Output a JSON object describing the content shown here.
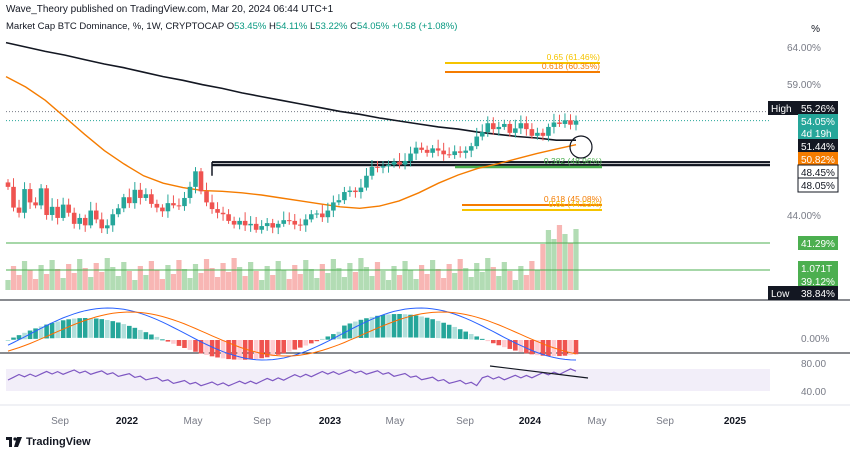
{
  "header": {
    "text": "Wave_Theory published on TradingView.com, Mar 20, 2024 06:44 UTC+1"
  },
  "legend": {
    "symbol": "Market Cap BTC Dominance, %, 1W, CRYPTOCAP",
    "o_label": "O",
    "o_value": "53.45%",
    "h_label": "H",
    "h_value": "54.11%",
    "l_label": "L",
    "l_value": "53.22%",
    "c_label": "C",
    "c_value": "54.05%",
    "change": "+0.58 (+1.08%)"
  },
  "percent_label": "%",
  "brand": {
    "name": "TradingView"
  },
  "colors": {
    "up": "#26a69a",
    "down": "#ef5350",
    "ma200": "#131722",
    "ma50": "#f57c00",
    "fib": "#f5c400",
    "fib_orange": "#f57c00",
    "support_green": "#4caf50",
    "macd": "#2962ff",
    "signal": "#ff6d00",
    "rsi": "#7e57c2"
  },
  "chart_data": {
    "type": "candlestick",
    "title": "Market Cap BTC Dominance, %, 1W, CRYPTOCAP",
    "x_ticks": [
      "Sep",
      "2022",
      "May",
      "Sep",
      "2023",
      "May",
      "Sep",
      "2024",
      "May",
      "Sep",
      "2025"
    ],
    "y_ticks": [
      "64.00%",
      "59.00%",
      "44.00%"
    ],
    "price_tags": [
      {
        "label": "High",
        "value": "55.26%",
        "kind": "high"
      },
      {
        "value": "54.05%",
        "sub": "4d 19h",
        "kind": "last"
      },
      {
        "value": "51.44%",
        "kind": "ma200"
      },
      {
        "value": "50.82%",
        "kind": "ma50"
      },
      {
        "value": "48.45%",
        "kind": "level"
      },
      {
        "value": "48.05%",
        "kind": "level"
      },
      {
        "value": "41.29%",
        "kind": "green"
      },
      {
        "value": "1.071T",
        "kind": "volume"
      },
      {
        "value": "39.12%",
        "kind": "green"
      },
      {
        "label": "Low",
        "value": "38.84%",
        "kind": "low"
      }
    ],
    "fib_levels": [
      {
        "label": "0.65 (61.46%)",
        "value": 61.46
      },
      {
        "label": "0.618 (60.35%)",
        "value": 60.35
      },
      {
        "label": "0.382 (48.96%)",
        "value": 48.96
      },
      {
        "label": "0.618 (45.08%)",
        "value": 45.08
      },
      {
        "label": "0.65 (44.53%)",
        "value": 44.53
      }
    ],
    "horizontal_levels": [
      55.26,
      48.45,
      48.05,
      41.29,
      39.12
    ],
    "close_series": [
      45.1,
      42.3,
      41.6,
      44.8,
      43.0,
      42.6,
      44.9,
      41.3,
      42.4,
      40.9,
      42.7,
      41.6,
      40.1,
      40.9,
      39.9,
      41.9,
      40.7,
      39.5,
      39.9,
      41.4,
      42.2,
      43.7,
      42.9,
      44.7,
      43.6,
      44.1,
      42.8,
      42.3,
      41.8,
      42.9,
      42.6,
      42.5,
      43.6,
      45.1,
      47.2,
      44.5,
      43.0,
      42.1,
      41.6,
      41.4,
      40.5,
      40.0,
      40.5,
      39.9,
      40.1,
      39.3,
      39.8,
      40.2,
      39.6,
      40.1,
      40.6,
      40.5,
      40.0,
      39.9,
      40.7,
      41.4,
      41.5,
      41.0,
      41.9,
      43.0,
      43.3,
      44.4,
      44.6,
      44.4,
      45.0,
      46.6,
      47.8,
      47.7,
      47.9,
      48.1,
      48.5,
      48.1,
      48.6,
      49.6,
      50.4,
      50.1,
      49.7,
      50.3,
      50.0,
      49.5,
      49.4,
      49.9,
      49.7,
      50.0,
      50.6,
      51.9,
      52.5,
      53.7,
      52.9,
      53.2,
      53.6,
      52.4,
      53.0,
      53.7,
      52.9,
      52.0,
      52.4,
      52.0,
      53.2,
      53.8,
      53.6,
      54.1,
      53.5,
      54.05
    ],
    "ma200": [
      64.6,
      64.0,
      63.4,
      62.9,
      62.3,
      61.7,
      61.2,
      60.6,
      60.0,
      59.5,
      58.9,
      58.4,
      57.8,
      57.3,
      56.8,
      56.3,
      55.8,
      55.3,
      54.9,
      54.4,
      54.0,
      53.6,
      53.2,
      52.9,
      52.5,
      52.2,
      51.9,
      51.7,
      51.4,
      51.4
    ],
    "ma50": [
      60.0,
      58.6,
      56.8,
      54.5,
      52.2,
      50.0,
      48.2,
      46.6,
      45.6,
      45.0,
      44.6,
      44.5,
      44.3,
      44.0,
      43.6,
      43.2,
      42.8,
      42.4,
      42.2,
      42.5,
      43.2,
      44.3,
      45.6,
      46.7,
      47.6,
      48.2,
      48.9,
      49.6,
      50.2,
      50.8
    ],
    "rsi_levels": [
      "80.00",
      "40.00"
    ],
    "rsi_value": "58.80",
    "macd_zero": "0.00%"
  }
}
